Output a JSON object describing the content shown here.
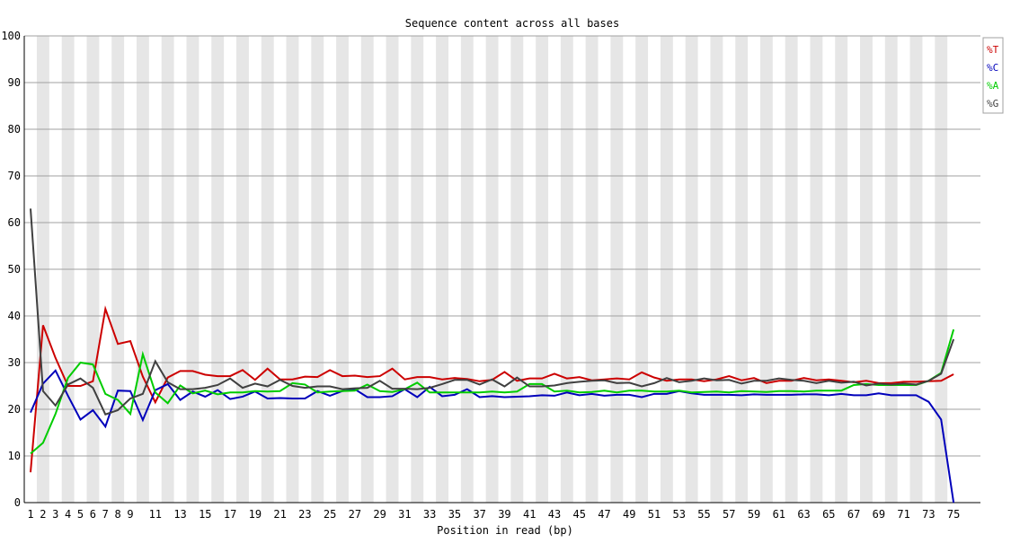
{
  "chart_data": {
    "type": "line",
    "title": "Sequence content across all bases",
    "xlabel": "Position in read (bp)",
    "ylabel": "",
    "ylim": [
      0,
      100
    ],
    "yticks": [
      0,
      10,
      20,
      30,
      40,
      50,
      60,
      70,
      80,
      90,
      100
    ],
    "grid": true,
    "legend_position": "top-right",
    "x": [
      1,
      2,
      3,
      4,
      5,
      6,
      7,
      8,
      9,
      10,
      11,
      12,
      13,
      14,
      15,
      16,
      17,
      18,
      19,
      20,
      21,
      22,
      23,
      24,
      25,
      26,
      27,
      28,
      29,
      30,
      31,
      32,
      33,
      34,
      35,
      36,
      37,
      38,
      39,
      40,
      41,
      42,
      43,
      44,
      45,
      46,
      47,
      48,
      49,
      50,
      51,
      52,
      53,
      54,
      55,
      56,
      57,
      58,
      59,
      60,
      61,
      62,
      63,
      64,
      65,
      66,
      67,
      68,
      69,
      70,
      71,
      72,
      73,
      74,
      75
    ],
    "xtick_labels": [
      "1",
      "2",
      "3",
      "4",
      "5",
      "6",
      "7",
      "8",
      "9",
      "11",
      "13",
      "15",
      "17",
      "19",
      "21",
      "23",
      "25",
      "27",
      "29",
      "31",
      "33",
      "35",
      "37",
      "39",
      "41",
      "43",
      "45",
      "47",
      "49",
      "51",
      "53",
      "55",
      "57",
      "59",
      "61",
      "63",
      "65",
      "67",
      "69",
      "71",
      "73",
      "75"
    ],
    "series": [
      {
        "name": "%T",
        "color": "#cc0000",
        "values": [
          6.5,
          38.0,
          31.0,
          25.0,
          25.0,
          26.0,
          41.5,
          34.0,
          34.6,
          27.0,
          21.5,
          26.8,
          28.2,
          28.2,
          27.4,
          27.1,
          27.1,
          28.4,
          26.3,
          28.7,
          26.4,
          26.4,
          27.0,
          26.9,
          28.4,
          27.1,
          27.2,
          26.9,
          27.1,
          28.7,
          26.4,
          26.9,
          26.9,
          26.4,
          26.7,
          26.5,
          26.0,
          26.3,
          28.0,
          26.1,
          26.6,
          26.6,
          27.6,
          26.6,
          26.9,
          26.2,
          26.4,
          26.6,
          26.4,
          27.9,
          26.8,
          26.1,
          26.4,
          26.4,
          26.0,
          26.4,
          27.1,
          26.2,
          26.7,
          25.6,
          26.1,
          26.1,
          26.7,
          26.2,
          26.4,
          26.1,
          25.8,
          26.1,
          25.6,
          25.6,
          25.9,
          25.9,
          26.0,
          26.1,
          27.5
        ]
      },
      {
        "name": "%C",
        "color": "#0000bb",
        "values": [
          19.3,
          25.5,
          28.3,
          22.9,
          17.8,
          19.8,
          16.3,
          24.0,
          23.9,
          17.7,
          24.1,
          25.4,
          22.0,
          23.8,
          22.7,
          24.1,
          22.2,
          22.7,
          23.8,
          22.3,
          22.4,
          22.3,
          22.3,
          23.9,
          22.9,
          23.9,
          24.3,
          22.6,
          22.6,
          22.8,
          24.3,
          22.6,
          24.8,
          22.8,
          23.1,
          24.3,
          22.6,
          22.8,
          22.6,
          22.7,
          22.8,
          23.0,
          22.9,
          23.6,
          23.0,
          23.3,
          22.9,
          23.1,
          23.1,
          22.6,
          23.3,
          23.3,
          23.9,
          23.4,
          23.1,
          23.1,
          23.1,
          23.0,
          23.2,
          23.1,
          23.1,
          23.1,
          23.2,
          23.2,
          23.0,
          23.3,
          23.0,
          23.0,
          23.4,
          23.0,
          23.0,
          23.0,
          21.6,
          17.8,
          0.0
        ]
      },
      {
        "name": "%A",
        "color": "#00cc00",
        "values": [
          10.5,
          12.8,
          19.0,
          26.7,
          30.0,
          29.6,
          23.3,
          22.0,
          19.0,
          31.8,
          23.6,
          21.3,
          25.1,
          23.4,
          24.0,
          23.2,
          23.6,
          23.6,
          23.9,
          23.8,
          23.9,
          25.6,
          25.3,
          23.6,
          23.8,
          23.9,
          24.0,
          25.3,
          23.9,
          23.7,
          24.3,
          25.7,
          23.6,
          23.6,
          23.6,
          23.6,
          23.6,
          23.8,
          23.6,
          23.8,
          25.4,
          25.4,
          23.8,
          24.0,
          23.6,
          23.7,
          24.0,
          23.6,
          24.0,
          24.0,
          23.8,
          23.8,
          24.0,
          23.6,
          23.7,
          23.8,
          23.6,
          23.9,
          23.8,
          23.7,
          23.9,
          23.9,
          23.8,
          24.0,
          24.0,
          24.0,
          25.2,
          25.4,
          25.2,
          25.2,
          25.2,
          25.2,
          26.1,
          27.8,
          37.1
        ]
      },
      {
        "name": "%G",
        "color": "#404040",
        "values": [
          63.0,
          23.9,
          20.8,
          25.3,
          26.6,
          24.6,
          18.9,
          19.8,
          22.3,
          23.3,
          30.3,
          25.8,
          24.3,
          24.3,
          24.6,
          25.2,
          26.6,
          24.6,
          25.5,
          24.9,
          26.3,
          25.0,
          24.6,
          24.9,
          24.9,
          24.3,
          24.5,
          24.6,
          26.1,
          24.4,
          24.4,
          24.3,
          24.6,
          25.4,
          26.3,
          26.3,
          25.3,
          26.4,
          24.9,
          26.8,
          24.9,
          24.9,
          25.1,
          25.6,
          25.9,
          26.1,
          26.2,
          25.6,
          25.7,
          24.9,
          25.6,
          26.7,
          25.8,
          26.1,
          26.6,
          26.2,
          26.3,
          25.5,
          26.1,
          26.1,
          26.6,
          26.3,
          26.1,
          25.6,
          26.1,
          25.7,
          25.9,
          25.1,
          25.5,
          25.3,
          25.5,
          25.3,
          26.1,
          27.6,
          35.0
        ]
      }
    ]
  }
}
